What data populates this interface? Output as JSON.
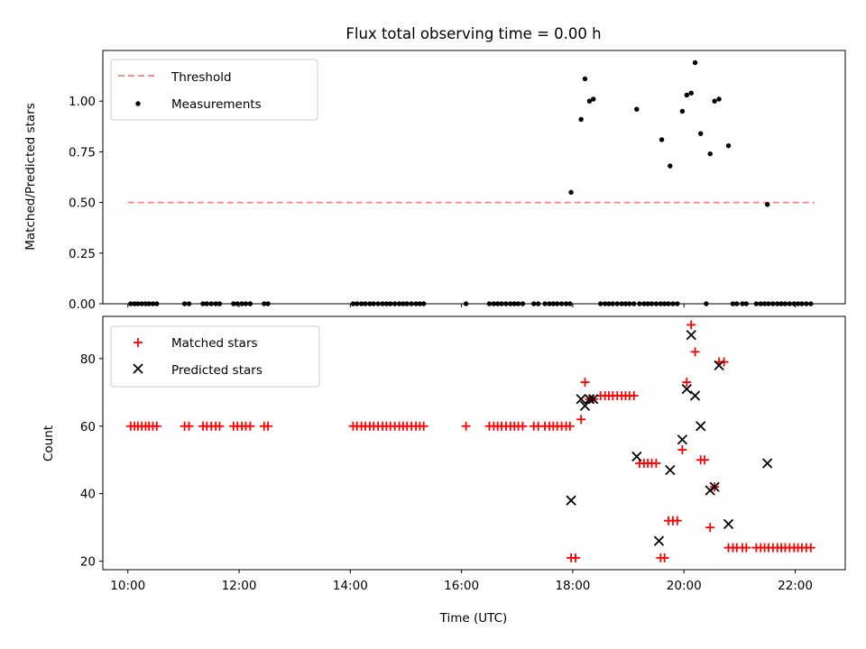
{
  "colors": {
    "threshold": "#ff7f7f",
    "measurements": "#000000",
    "matched": "#ff0000",
    "predicted": "#000000"
  },
  "chart_data": [
    {
      "type": "scatter",
      "title": "Flux total observing time = 0.00 h",
      "xlabel": "",
      "ylabel": "Matched/Predicted stars",
      "x_unit": "hours UTC",
      "xlim": [
        9.55,
        22.9
      ],
      "ylim": [
        0.0,
        1.25
      ],
      "yticks": [
        0.0,
        0.25,
        0.5,
        0.75,
        1.0
      ],
      "ytick_labels": [
        "0.00",
        "0.25",
        "0.50",
        "0.75",
        "1.00"
      ],
      "legend_position": "top-left",
      "threshold": {
        "name": "Threshold",
        "value": 0.5,
        "x_start": 10.0,
        "x_end": 22.35
      },
      "series": [
        {
          "name": "Measurements",
          "marker": "dot",
          "points": [
            [
              10.05,
              0
            ],
            [
              10.12,
              0
            ],
            [
              10.18,
              0
            ],
            [
              10.25,
              0
            ],
            [
              10.32,
              0
            ],
            [
              10.38,
              0
            ],
            [
              10.45,
              0
            ],
            [
              10.52,
              0
            ],
            [
              11.02,
              0
            ],
            [
              11.1,
              0
            ],
            [
              11.35,
              0
            ],
            [
              11.42,
              0
            ],
            [
              11.5,
              0
            ],
            [
              11.58,
              0
            ],
            [
              11.65,
              0
            ],
            [
              11.9,
              0
            ],
            [
              11.97,
              0
            ],
            [
              12.05,
              0
            ],
            [
              12.12,
              0
            ],
            [
              12.2,
              0
            ],
            [
              12.45,
              0
            ],
            [
              12.52,
              0
            ],
            [
              14.05,
              0
            ],
            [
              14.12,
              0
            ],
            [
              14.2,
              0
            ],
            [
              14.27,
              0
            ],
            [
              14.35,
              0
            ],
            [
              14.42,
              0
            ],
            [
              14.5,
              0
            ],
            [
              14.58,
              0
            ],
            [
              14.65,
              0
            ],
            [
              14.72,
              0
            ],
            [
              14.8,
              0
            ],
            [
              14.88,
              0
            ],
            [
              14.95,
              0
            ],
            [
              15.02,
              0
            ],
            [
              15.1,
              0
            ],
            [
              15.18,
              0
            ],
            [
              15.25,
              0
            ],
            [
              15.32,
              0
            ],
            [
              16.08,
              0
            ],
            [
              16.5,
              0
            ],
            [
              16.58,
              0
            ],
            [
              16.65,
              0
            ],
            [
              16.72,
              0
            ],
            [
              16.8,
              0
            ],
            [
              16.88,
              0
            ],
            [
              16.95,
              0
            ],
            [
              17.02,
              0
            ],
            [
              17.1,
              0
            ],
            [
              17.3,
              0
            ],
            [
              17.38,
              0
            ],
            [
              17.5,
              0
            ],
            [
              17.58,
              0
            ],
            [
              17.65,
              0
            ],
            [
              17.72,
              0
            ],
            [
              17.8,
              0
            ],
            [
              17.88,
              0
            ],
            [
              17.95,
              0
            ],
            [
              18.5,
              0
            ],
            [
              18.58,
              0
            ],
            [
              18.65,
              0
            ],
            [
              18.72,
              0
            ],
            [
              18.8,
              0
            ],
            [
              18.88,
              0
            ],
            [
              18.95,
              0
            ],
            [
              19.02,
              0
            ],
            [
              19.1,
              0
            ],
            [
              19.2,
              0
            ],
            [
              19.28,
              0
            ],
            [
              19.35,
              0
            ],
            [
              19.42,
              0
            ],
            [
              19.5,
              0
            ],
            [
              19.58,
              0
            ],
            [
              19.65,
              0
            ],
            [
              19.72,
              0
            ],
            [
              19.8,
              0
            ],
            [
              19.88,
              0
            ],
            [
              20.4,
              0
            ],
            [
              20.88,
              0
            ],
            [
              20.95,
              0
            ],
            [
              21.05,
              0
            ],
            [
              21.12,
              0
            ],
            [
              21.3,
              0
            ],
            [
              21.38,
              0
            ],
            [
              21.45,
              0
            ],
            [
              21.52,
              0
            ],
            [
              21.6,
              0
            ],
            [
              21.68,
              0
            ],
            [
              21.75,
              0
            ],
            [
              21.82,
              0
            ],
            [
              21.9,
              0
            ],
            [
              21.98,
              0
            ],
            [
              22.05,
              0
            ],
            [
              22.12,
              0
            ],
            [
              22.2,
              0
            ],
            [
              22.28,
              0
            ],
            [
              17.97,
              0.55
            ],
            [
              18.15,
              0.91
            ],
            [
              18.22,
              1.11
            ],
            [
              18.3,
              1.0
            ],
            [
              18.37,
              1.01
            ],
            [
              19.15,
              0.96
            ],
            [
              19.6,
              0.81
            ],
            [
              19.75,
              0.68
            ],
            [
              19.97,
              0.95
            ],
            [
              20.05,
              1.03
            ],
            [
              20.13,
              1.04
            ],
            [
              20.2,
              1.19
            ],
            [
              20.3,
              0.84
            ],
            [
              20.47,
              0.74
            ],
            [
              20.55,
              1.0
            ],
            [
              20.63,
              1.01
            ],
            [
              20.8,
              0.78
            ],
            [
              21.5,
              0.49
            ]
          ]
        }
      ]
    },
    {
      "type": "scatter",
      "title": "",
      "xlabel": "Time (UTC)",
      "ylabel": "Count",
      "x_unit": "hours UTC",
      "xlim": [
        9.55,
        22.9
      ],
      "ylim": [
        17.5,
        92.5
      ],
      "xticks": [
        10,
        12,
        14,
        16,
        18,
        20,
        22
      ],
      "xtick_labels": [
        "10:00",
        "12:00",
        "14:00",
        "16:00",
        "18:00",
        "20:00",
        "22:00"
      ],
      "yticks": [
        20,
        40,
        60,
        80
      ],
      "ytick_labels": [
        "20",
        "40",
        "60",
        "80"
      ],
      "legend_position": "top-left",
      "series": [
        {
          "name": "Matched stars",
          "marker": "plus",
          "points": [
            [
              10.05,
              60
            ],
            [
              10.12,
              60
            ],
            [
              10.18,
              60
            ],
            [
              10.25,
              60
            ],
            [
              10.32,
              60
            ],
            [
              10.38,
              60
            ],
            [
              10.45,
              60
            ],
            [
              10.52,
              60
            ],
            [
              11.02,
              60
            ],
            [
              11.1,
              60
            ],
            [
              11.35,
              60
            ],
            [
              11.42,
              60
            ],
            [
              11.5,
              60
            ],
            [
              11.58,
              60
            ],
            [
              11.65,
              60
            ],
            [
              11.9,
              60
            ],
            [
              11.97,
              60
            ],
            [
              12.05,
              60
            ],
            [
              12.12,
              60
            ],
            [
              12.2,
              60
            ],
            [
              12.45,
              60
            ],
            [
              12.52,
              60
            ],
            [
              14.05,
              60
            ],
            [
              14.12,
              60
            ],
            [
              14.2,
              60
            ],
            [
              14.27,
              60
            ],
            [
              14.35,
              60
            ],
            [
              14.42,
              60
            ],
            [
              14.5,
              60
            ],
            [
              14.58,
              60
            ],
            [
              14.65,
              60
            ],
            [
              14.72,
              60
            ],
            [
              14.8,
              60
            ],
            [
              14.88,
              60
            ],
            [
              14.95,
              60
            ],
            [
              15.02,
              60
            ],
            [
              15.1,
              60
            ],
            [
              15.18,
              60
            ],
            [
              15.25,
              60
            ],
            [
              15.32,
              60
            ],
            [
              16.08,
              60
            ],
            [
              16.5,
              60
            ],
            [
              16.58,
              60
            ],
            [
              16.65,
              60
            ],
            [
              16.72,
              60
            ],
            [
              16.8,
              60
            ],
            [
              16.88,
              60
            ],
            [
              16.95,
              60
            ],
            [
              17.02,
              60
            ],
            [
              17.1,
              60
            ],
            [
              17.3,
              60
            ],
            [
              17.38,
              60
            ],
            [
              17.5,
              60
            ],
            [
              17.58,
              60
            ],
            [
              17.65,
              60
            ],
            [
              17.72,
              60
            ],
            [
              17.8,
              60
            ],
            [
              17.88,
              60
            ],
            [
              17.95,
              60
            ],
            [
              17.97,
              21
            ],
            [
              18.05,
              21
            ],
            [
              18.15,
              62
            ],
            [
              18.22,
              73
            ],
            [
              18.3,
              68
            ],
            [
              18.37,
              68
            ],
            [
              18.5,
              69
            ],
            [
              18.58,
              69
            ],
            [
              18.65,
              69
            ],
            [
              18.72,
              69
            ],
            [
              18.8,
              69
            ],
            [
              18.88,
              69
            ],
            [
              18.95,
              69
            ],
            [
              19.02,
              69
            ],
            [
              19.1,
              69
            ],
            [
              19.2,
              49
            ],
            [
              19.28,
              49
            ],
            [
              19.35,
              49
            ],
            [
              19.42,
              49
            ],
            [
              19.5,
              49
            ],
            [
              19.58,
              21
            ],
            [
              19.65,
              21
            ],
            [
              19.72,
              32
            ],
            [
              19.8,
              32
            ],
            [
              19.88,
              32
            ],
            [
              19.97,
              53
            ],
            [
              20.05,
              73
            ],
            [
              20.13,
              90
            ],
            [
              20.2,
              82
            ],
            [
              20.3,
              50
            ],
            [
              20.37,
              50
            ],
            [
              20.47,
              30
            ],
            [
              20.55,
              42
            ],
            [
              20.63,
              79
            ],
            [
              20.72,
              79
            ],
            [
              20.8,
              24
            ],
            [
              20.88,
              24
            ],
            [
              20.95,
              24
            ],
            [
              21.05,
              24
            ],
            [
              21.12,
              24
            ],
            [
              21.3,
              24
            ],
            [
              21.38,
              24
            ],
            [
              21.45,
              24
            ],
            [
              21.52,
              24
            ],
            [
              21.6,
              24
            ],
            [
              21.68,
              24
            ],
            [
              21.75,
              24
            ],
            [
              21.82,
              24
            ],
            [
              21.9,
              24
            ],
            [
              21.98,
              24
            ],
            [
              22.05,
              24
            ],
            [
              22.12,
              24
            ],
            [
              22.2,
              24
            ],
            [
              22.28,
              24
            ]
          ]
        },
        {
          "name": "Predicted stars",
          "marker": "x",
          "points": [
            [
              17.97,
              38
            ],
            [
              18.15,
              68
            ],
            [
              18.22,
              66
            ],
            [
              18.3,
              68
            ],
            [
              18.37,
              68
            ],
            [
              19.15,
              51
            ],
            [
              19.55,
              26
            ],
            [
              19.75,
              47
            ],
            [
              19.97,
              56
            ],
            [
              20.05,
              71
            ],
            [
              20.13,
              87
            ],
            [
              20.2,
              69
            ],
            [
              20.3,
              60
            ],
            [
              20.47,
              41
            ],
            [
              20.55,
              42
            ],
            [
              20.63,
              78
            ],
            [
              20.8,
              31
            ],
            [
              21.5,
              49
            ]
          ]
        }
      ]
    }
  ]
}
